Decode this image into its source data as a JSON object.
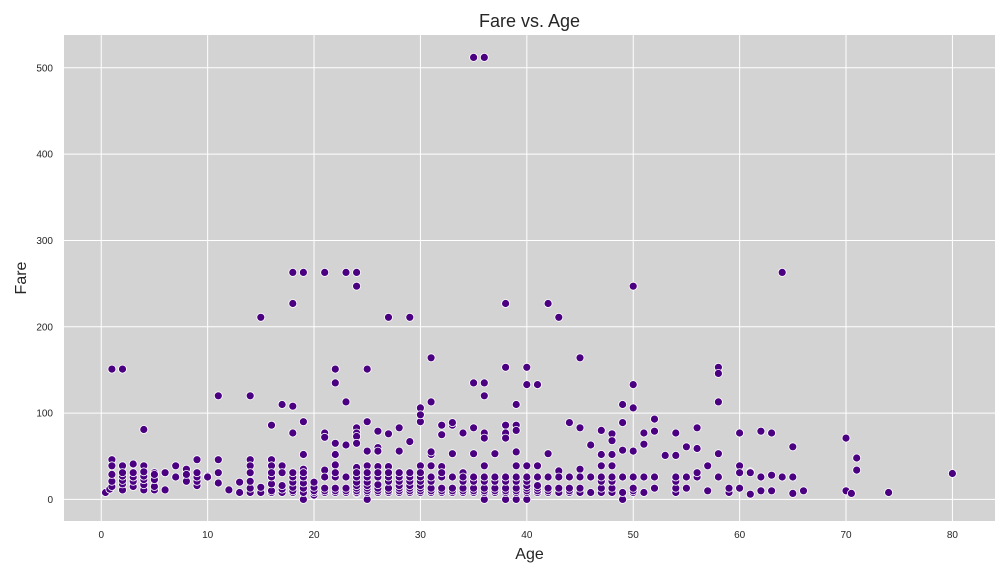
{
  "chart_data": {
    "type": "scatter",
    "title": "Fare vs. Age",
    "xlabel": "Age",
    "ylabel": "Fare",
    "xlim": [
      -3.5,
      84
    ],
    "ylim": [
      -25,
      538
    ],
    "x_ticks": [
      0,
      10,
      20,
      30,
      40,
      50,
      60,
      70,
      80
    ],
    "y_ticks": [
      0,
      100,
      200,
      300,
      400,
      500
    ],
    "grid": true,
    "legend": "none",
    "colors": {
      "background": "#d3d3d3",
      "grid": "#ffffff",
      "point": "#4b0082",
      "point_edge": "#ffffff",
      "text": "#262626"
    },
    "points": [
      [
        35,
        512
      ],
      [
        36,
        512
      ],
      [
        18,
        263
      ],
      [
        19,
        263
      ],
      [
        21,
        263
      ],
      [
        23,
        263
      ],
      [
        24,
        263
      ],
      [
        64,
        263
      ],
      [
        50,
        247
      ],
      [
        24,
        247
      ],
      [
        18,
        227
      ],
      [
        38,
        227
      ],
      [
        42,
        227
      ],
      [
        15,
        211
      ],
      [
        27,
        211
      ],
      [
        29,
        211
      ],
      [
        43,
        211
      ],
      [
        31,
        164
      ],
      [
        45,
        164
      ],
      [
        1,
        151
      ],
      [
        2,
        151
      ],
      [
        22,
        151
      ],
      [
        25,
        151
      ],
      [
        38,
        153
      ],
      [
        40,
        153
      ],
      [
        58,
        153
      ],
      [
        58,
        146
      ],
      [
        22,
        135
      ],
      [
        35,
        135
      ],
      [
        36,
        135
      ],
      [
        40,
        133
      ],
      [
        41,
        133
      ],
      [
        50,
        133
      ],
      [
        11,
        120
      ],
      [
        14,
        120
      ],
      [
        36,
        120
      ],
      [
        23,
        113
      ],
      [
        31,
        113
      ],
      [
        58,
        113
      ],
      [
        17,
        110
      ],
      [
        18,
        108
      ],
      [
        39,
        110
      ],
      [
        49,
        110
      ],
      [
        50,
        106
      ],
      [
        30,
        106
      ],
      [
        19,
        90
      ],
      [
        25,
        90
      ],
      [
        24,
        83
      ],
      [
        35,
        83
      ],
      [
        38,
        86
      ],
      [
        39,
        86
      ],
      [
        44,
        89
      ],
      [
        47,
        80
      ],
      [
        45,
        83
      ],
      [
        49,
        89
      ],
      [
        52,
        93
      ],
      [
        56,
        83
      ],
      [
        16,
        86
      ],
      [
        32,
        86
      ],
      [
        33,
        86
      ],
      [
        52,
        79
      ],
      [
        62,
        79
      ],
      [
        63,
        77
      ],
      [
        4,
        81
      ],
      [
        18,
        77
      ],
      [
        21,
        77
      ],
      [
        24,
        77
      ],
      [
        26,
        79
      ],
      [
        28,
        83
      ],
      [
        30,
        90
      ],
      [
        30,
        98
      ],
      [
        33,
        89
      ],
      [
        34,
        77
      ],
      [
        38,
        77
      ],
      [
        36,
        77
      ],
      [
        39,
        80
      ],
      [
        48,
        76
      ],
      [
        54,
        77
      ],
      [
        60,
        77
      ],
      [
        51,
        77
      ],
      [
        21,
        72
      ],
      [
        24,
        73
      ],
      [
        27,
        76
      ],
      [
        32,
        75
      ],
      [
        36,
        71
      ],
      [
        38,
        71
      ],
      [
        70,
        71
      ],
      [
        46,
        63
      ],
      [
        48,
        68
      ],
      [
        51,
        64
      ],
      [
        55,
        61
      ],
      [
        65,
        61
      ],
      [
        24,
        65
      ],
      [
        22,
        65
      ],
      [
        23,
        63
      ],
      [
        26,
        60
      ],
      [
        1,
        46
      ],
      [
        9,
        46
      ],
      [
        11,
        46
      ],
      [
        14,
        46
      ],
      [
        16,
        46
      ],
      [
        25,
        56
      ],
      [
        26,
        56
      ],
      [
        19,
        52
      ],
      [
        22,
        52
      ],
      [
        28,
        56
      ],
      [
        31,
        52
      ],
      [
        33,
        53
      ],
      [
        35,
        53
      ],
      [
        37,
        53
      ],
      [
        39,
        55
      ],
      [
        42,
        53
      ],
      [
        47,
        52
      ],
      [
        48,
        52
      ],
      [
        50,
        56
      ],
      [
        53,
        51
      ],
      [
        54,
        51
      ],
      [
        58,
        53
      ],
      [
        71,
        48
      ],
      [
        49,
        57
      ],
      [
        56,
        59
      ],
      [
        29,
        67
      ],
      [
        31,
        55
      ],
      [
        1,
        39
      ],
      [
        2,
        39
      ],
      [
        3,
        41
      ],
      [
        4,
        39
      ],
      [
        5,
        31
      ],
      [
        6,
        31
      ],
      [
        7,
        39
      ],
      [
        8,
        35
      ],
      [
        9,
        29
      ],
      [
        10,
        27
      ],
      [
        14,
        39
      ],
      [
        16,
        39
      ],
      [
        17,
        39
      ],
      [
        19,
        35
      ],
      [
        21,
        34
      ],
      [
        22,
        40
      ],
      [
        24,
        37
      ],
      [
        25,
        39
      ],
      [
        26,
        38
      ],
      [
        27,
        38
      ],
      [
        28,
        31
      ],
      [
        30,
        39
      ],
      [
        31,
        39
      ],
      [
        32,
        38
      ],
      [
        34,
        31
      ],
      [
        36,
        39
      ],
      [
        39,
        39
      ],
      [
        40,
        39
      ],
      [
        41,
        39
      ],
      [
        43,
        33
      ],
      [
        45,
        35
      ],
      [
        47,
        39
      ],
      [
        48,
        39
      ],
      [
        57,
        39
      ],
      [
        60,
        39
      ],
      [
        61,
        32
      ],
      [
        71,
        34
      ],
      [
        63,
        28
      ],
      [
        0.4,
        8
      ],
      [
        0.8,
        12
      ],
      [
        1,
        15
      ],
      [
        1,
        21
      ],
      [
        1,
        29
      ],
      [
        2,
        11
      ],
      [
        2,
        18
      ],
      [
        2,
        22
      ],
      [
        2,
        27
      ],
      [
        2,
        31
      ],
      [
        3,
        15
      ],
      [
        3,
        21
      ],
      [
        3,
        26
      ],
      [
        3,
        31
      ],
      [
        4,
        11
      ],
      [
        4,
        17
      ],
      [
        4,
        23
      ],
      [
        4,
        27
      ],
      [
        4,
        32
      ],
      [
        5,
        11
      ],
      [
        5,
        15
      ],
      [
        5,
        23
      ],
      [
        5,
        29
      ],
      [
        6,
        11
      ],
      [
        6,
        31
      ],
      [
        7,
        26
      ],
      [
        8,
        21
      ],
      [
        8,
        29
      ],
      [
        9,
        16
      ],
      [
        9,
        21
      ],
      [
        9,
        26
      ],
      [
        9,
        31
      ],
      [
        10,
        26
      ],
      [
        11,
        19
      ],
      [
        11,
        31
      ],
      [
        12,
        11
      ],
      [
        13,
        8
      ],
      [
        13,
        20
      ],
      [
        14,
        8
      ],
      [
        14,
        13
      ],
      [
        14,
        21
      ],
      [
        14,
        31
      ],
      [
        15,
        8
      ],
      [
        15,
        14
      ],
      [
        16,
        8
      ],
      [
        16,
        10
      ],
      [
        16,
        18
      ],
      [
        16,
        26
      ],
      [
        16,
        31
      ],
      [
        17,
        8
      ],
      [
        17,
        12
      ],
      [
        17,
        16
      ],
      [
        17,
        31
      ],
      [
        18,
        8
      ],
      [
        18,
        10
      ],
      [
        18,
        14
      ],
      [
        18,
        20
      ],
      [
        18,
        26
      ],
      [
        18,
        31
      ],
      [
        19,
        0
      ],
      [
        19,
        8
      ],
      [
        19,
        13
      ],
      [
        19,
        19
      ],
      [
        19,
        26
      ],
      [
        19,
        31
      ],
      [
        20,
        5
      ],
      [
        20,
        8
      ],
      [
        20,
        10
      ],
      [
        20,
        14
      ],
      [
        20,
        20
      ],
      [
        21,
        8
      ],
      [
        21,
        10
      ],
      [
        21,
        13
      ],
      [
        21,
        26
      ],
      [
        22,
        8
      ],
      [
        22,
        10
      ],
      [
        22,
        13
      ],
      [
        22,
        26
      ],
      [
        22,
        31
      ],
      [
        23,
        8
      ],
      [
        23,
        10
      ],
      [
        23,
        13
      ],
      [
        23,
        26
      ],
      [
        24,
        7
      ],
      [
        24,
        8
      ],
      [
        24,
        10
      ],
      [
        24,
        13
      ],
      [
        24,
        16
      ],
      [
        24,
        20
      ],
      [
        24,
        26
      ],
      [
        24,
        31
      ],
      [
        25,
        0
      ],
      [
        25,
        8
      ],
      [
        25,
        10
      ],
      [
        25,
        13
      ],
      [
        25,
        16
      ],
      [
        25,
        20
      ],
      [
        25,
        26
      ],
      [
        25,
        31
      ],
      [
        26,
        8
      ],
      [
        26,
        10
      ],
      [
        26,
        13
      ],
      [
        26,
        17
      ],
      [
        26,
        26
      ],
      [
        26,
        31
      ],
      [
        27,
        8
      ],
      [
        27,
        10
      ],
      [
        27,
        13
      ],
      [
        27,
        21
      ],
      [
        27,
        26
      ],
      [
        27,
        31
      ],
      [
        28,
        8
      ],
      [
        28,
        10
      ],
      [
        28,
        13
      ],
      [
        28,
        16
      ],
      [
        28,
        21
      ],
      [
        28,
        26
      ],
      [
        28,
        31
      ],
      [
        29,
        8
      ],
      [
        29,
        10
      ],
      [
        29,
        13
      ],
      [
        29,
        16
      ],
      [
        29,
        21
      ],
      [
        29,
        26
      ],
      [
        29,
        31
      ],
      [
        30,
        8
      ],
      [
        30,
        10
      ],
      [
        30,
        13
      ],
      [
        30,
        16
      ],
      [
        30,
        21
      ],
      [
        30,
        26
      ],
      [
        30,
        31
      ],
      [
        31,
        8
      ],
      [
        31,
        10
      ],
      [
        31,
        13
      ],
      [
        31,
        21
      ],
      [
        31,
        26
      ],
      [
        32,
        8
      ],
      [
        32,
        10
      ],
      [
        32,
        13
      ],
      [
        32,
        26
      ],
      [
        32,
        31
      ],
      [
        33,
        8
      ],
      [
        33,
        10
      ],
      [
        33,
        13
      ],
      [
        33,
        26
      ],
      [
        34,
        8
      ],
      [
        34,
        10
      ],
      [
        34,
        13
      ],
      [
        34,
        21
      ],
      [
        34,
        26
      ],
      [
        35,
        8
      ],
      [
        35,
        10
      ],
      [
        35,
        13
      ],
      [
        35,
        21
      ],
      [
        35,
        26
      ],
      [
        36,
        0
      ],
      [
        36,
        8
      ],
      [
        36,
        10
      ],
      [
        36,
        13
      ],
      [
        36,
        21
      ],
      [
        36,
        26
      ],
      [
        37,
        8
      ],
      [
        37,
        10
      ],
      [
        37,
        13
      ],
      [
        37,
        21
      ],
      [
        37,
        26
      ],
      [
        38,
        0
      ],
      [
        38,
        8
      ],
      [
        38,
        10
      ],
      [
        38,
        13
      ],
      [
        38,
        21
      ],
      [
        38,
        26
      ],
      [
        39,
        0
      ],
      [
        39,
        8
      ],
      [
        39,
        10
      ],
      [
        39,
        13
      ],
      [
        39,
        21
      ],
      [
        39,
        26
      ],
      [
        40,
        0
      ],
      [
        40,
        8
      ],
      [
        40,
        10
      ],
      [
        40,
        13
      ],
      [
        40,
        16
      ],
      [
        40,
        21
      ],
      [
        40,
        26
      ],
      [
        41,
        8
      ],
      [
        41,
        10
      ],
      [
        41,
        13
      ],
      [
        41,
        16
      ],
      [
        41,
        26
      ],
      [
        42,
        8
      ],
      [
        42,
        10
      ],
      [
        42,
        13
      ],
      [
        42,
        26
      ],
      [
        43,
        8
      ],
      [
        43,
        13
      ],
      [
        43,
        26
      ],
      [
        44,
        8
      ],
      [
        44,
        10
      ],
      [
        44,
        13
      ],
      [
        44,
        26
      ],
      [
        45,
        8
      ],
      [
        45,
        13
      ],
      [
        45,
        26
      ],
      [
        46,
        8
      ],
      [
        46,
        26
      ],
      [
        47,
        8
      ],
      [
        47,
        13
      ],
      [
        47,
        21
      ],
      [
        47,
        26
      ],
      [
        48,
        8
      ],
      [
        48,
        13
      ],
      [
        48,
        21
      ],
      [
        48,
        26
      ],
      [
        49,
        0
      ],
      [
        49,
        8
      ],
      [
        49,
        26
      ],
      [
        50,
        8
      ],
      [
        50,
        10
      ],
      [
        50,
        13
      ],
      [
        50,
        26
      ],
      [
        51,
        8
      ],
      [
        51,
        26
      ],
      [
        52,
        13
      ],
      [
        52,
        26
      ],
      [
        54,
        8
      ],
      [
        54,
        13
      ],
      [
        54,
        21
      ],
      [
        54,
        26
      ],
      [
        55,
        13
      ],
      [
        55,
        26
      ],
      [
        56,
        26
      ],
      [
        56,
        31
      ],
      [
        57,
        10
      ],
      [
        58,
        26
      ],
      [
        59,
        8
      ],
      [
        59,
        13
      ],
      [
        60,
        13
      ],
      [
        60,
        31
      ],
      [
        61,
        6
      ],
      [
        61,
        31
      ],
      [
        62,
        10
      ],
      [
        62,
        26
      ],
      [
        63,
        10
      ],
      [
        64,
        26
      ],
      [
        65,
        7
      ],
      [
        65,
        26
      ],
      [
        66,
        10
      ],
      [
        70,
        10
      ],
      [
        70.5,
        7
      ],
      [
        74,
        8
      ],
      [
        80,
        30
      ]
    ]
  }
}
